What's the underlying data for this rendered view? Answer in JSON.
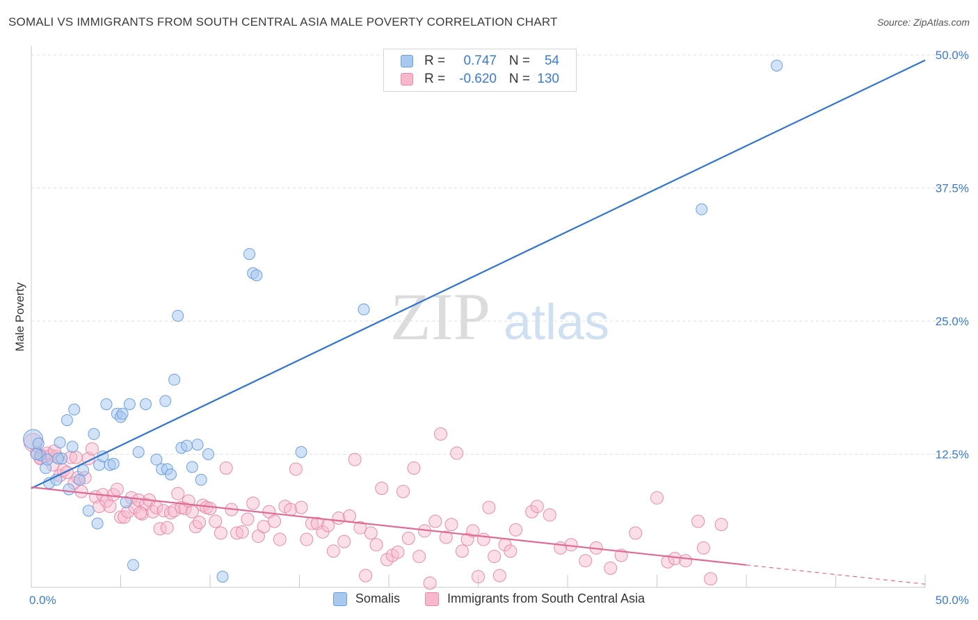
{
  "header": {
    "title": "SOMALI VS IMMIGRANTS FROM SOUTH CENTRAL ASIA MALE POVERTY CORRELATION CHART",
    "source": "Source: ZipAtlas.com"
  },
  "watermark": {
    "zip": "ZIP",
    "atlas": "atlas"
  },
  "legend": {
    "rows": [
      {
        "r_label": "R =",
        "r_value": "0.747",
        "n_label": "N =",
        "n_value": "54",
        "color": "#a8c8f0",
        "border": "#6a9fe0"
      },
      {
        "r_label": "R =",
        "r_value": "-0.620",
        "n_label": "N =",
        "n_value": "130",
        "color": "#f7b8cc",
        "border": "#e88aa8"
      }
    ],
    "bottom": [
      {
        "label": "Somalis",
        "color": "#a8c8f0",
        "border": "#6a9fe0"
      },
      {
        "label": "Immigrants from South Central Asia",
        "color": "#f7b8cc",
        "border": "#e88aa8"
      }
    ]
  },
  "chart_data": {
    "type": "scatter",
    "title": "SOMALI VS IMMIGRANTS FROM SOUTH CENTRAL ASIA MALE POVERTY CORRELATION CHART",
    "xlabel": "",
    "ylabel": "Male Poverty",
    "xlim": [
      0,
      50
    ],
    "ylim": [
      0,
      50
    ],
    "x_tick_labels": [
      "0.0%",
      "50.0%"
    ],
    "y_ticks": [
      12.5,
      25.0,
      37.5,
      50.0
    ],
    "y_tick_labels": [
      "12.5%",
      "25.0%",
      "37.5%",
      "50.0%"
    ],
    "grid": true,
    "series": [
      {
        "name": "Somalis",
        "color": "#6a9fe0",
        "fill": "#a8c8f0",
        "trend": {
          "x": [
            0,
            50
          ],
          "y": [
            9.3,
            49.5
          ],
          "color": "#2f74cf"
        },
        "points": [
          [
            0.1,
            13.9
          ],
          [
            0.4,
            13.5
          ],
          [
            0.5,
            12.4
          ],
          [
            0.8,
            11.2
          ],
          [
            0.9,
            12.0
          ],
          [
            1.0,
            9.8
          ],
          [
            1.4,
            10.1
          ],
          [
            1.6,
            13.6
          ],
          [
            1.7,
            12.1
          ],
          [
            2.0,
            15.7
          ],
          [
            2.1,
            9.2
          ],
          [
            2.3,
            13.2
          ],
          [
            2.4,
            16.7
          ],
          [
            2.7,
            10.1
          ],
          [
            2.9,
            11.0
          ],
          [
            3.2,
            7.2
          ],
          [
            3.5,
            14.4
          ],
          [
            3.7,
            6.0
          ],
          [
            3.8,
            11.5
          ],
          [
            4.0,
            12.3
          ],
          [
            4.2,
            17.2
          ],
          [
            4.4,
            11.5
          ],
          [
            4.6,
            11.6
          ],
          [
            4.8,
            16.3
          ],
          [
            5.0,
            16.0
          ],
          [
            5.1,
            16.3
          ],
          [
            5.3,
            8.0
          ],
          [
            5.5,
            17.2
          ],
          [
            5.7,
            2.1
          ],
          [
            6.0,
            12.7
          ],
          [
            6.4,
            17.2
          ],
          [
            7.0,
            12.0
          ],
          [
            7.3,
            11.1
          ],
          [
            7.5,
            17.5
          ],
          [
            7.6,
            11.1
          ],
          [
            7.8,
            10.6
          ],
          [
            8.0,
            19.5
          ],
          [
            8.2,
            25.5
          ],
          [
            8.4,
            13.1
          ],
          [
            8.7,
            13.3
          ],
          [
            9.0,
            11.3
          ],
          [
            9.3,
            13.4
          ],
          [
            9.5,
            10.1
          ],
          [
            9.9,
            12.5
          ],
          [
            10.7,
            1.0
          ],
          [
            12.2,
            31.3
          ],
          [
            12.4,
            29.5
          ],
          [
            12.6,
            29.3
          ],
          [
            15.1,
            12.7
          ],
          [
            18.6,
            26.1
          ],
          [
            37.5,
            35.5
          ],
          [
            41.7,
            49.0
          ],
          [
            0.3,
            12.5
          ],
          [
            1.5,
            12.1
          ]
        ]
      },
      {
        "name": "Immigrants from South Central Asia",
        "color": "#e88aa8",
        "fill": "#f7b8cc",
        "trend": {
          "x": [
            0,
            40
          ],
          "y": [
            9.4,
            2.1
          ],
          "dashed_to": [
            50,
            0.3
          ],
          "color": "#e06a93"
        },
        "points": [
          [
            0.1,
            13.6
          ],
          [
            0.3,
            12.6
          ],
          [
            0.5,
            12.2
          ],
          [
            0.7,
            12.3
          ],
          [
            0.9,
            12.6
          ],
          [
            1.1,
            12.4
          ],
          [
            1.2,
            11.5
          ],
          [
            1.4,
            12.3
          ],
          [
            1.6,
            10.5
          ],
          [
            1.8,
            11.0
          ],
          [
            2.0,
            10.8
          ],
          [
            2.2,
            12.2
          ],
          [
            2.4,
            9.8
          ],
          [
            2.6,
            10.3
          ],
          [
            2.8,
            9.0
          ],
          [
            3.0,
            10.3
          ],
          [
            3.2,
            12.1
          ],
          [
            3.4,
            13.0
          ],
          [
            3.6,
            8.5
          ],
          [
            3.8,
            7.6
          ],
          [
            4.0,
            8.7
          ],
          [
            4.2,
            8.1
          ],
          [
            4.4,
            7.6
          ],
          [
            4.6,
            8.7
          ],
          [
            4.8,
            9.2
          ],
          [
            5.0,
            6.6
          ],
          [
            5.2,
            6.6
          ],
          [
            5.4,
            7.1
          ],
          [
            5.6,
            8.4
          ],
          [
            5.8,
            7.5
          ],
          [
            6.0,
            8.2
          ],
          [
            6.2,
            6.9
          ],
          [
            6.4,
            7.8
          ],
          [
            6.6,
            8.2
          ],
          [
            6.8,
            7.1
          ],
          [
            7.0,
            7.5
          ],
          [
            7.2,
            5.5
          ],
          [
            7.4,
            7.2
          ],
          [
            7.6,
            5.6
          ],
          [
            7.8,
            7.0
          ],
          [
            8.0,
            7.2
          ],
          [
            8.2,
            8.8
          ],
          [
            8.4,
            7.5
          ],
          [
            8.6,
            7.4
          ],
          [
            8.8,
            8.1
          ],
          [
            9.0,
            7.1
          ],
          [
            9.2,
            5.7
          ],
          [
            9.4,
            6.1
          ],
          [
            9.6,
            7.7
          ],
          [
            9.8,
            7.5
          ],
          [
            10.0,
            7.4
          ],
          [
            10.3,
            6.2
          ],
          [
            10.6,
            5.1
          ],
          [
            10.9,
            11.2
          ],
          [
            11.2,
            7.3
          ],
          [
            11.5,
            5.1
          ],
          [
            11.8,
            5.2
          ],
          [
            12.1,
            6.4
          ],
          [
            12.4,
            7.9
          ],
          [
            12.7,
            4.8
          ],
          [
            13.0,
            5.7
          ],
          [
            13.3,
            7.1
          ],
          [
            13.6,
            6.2
          ],
          [
            13.9,
            4.5
          ],
          [
            14.2,
            7.6
          ],
          [
            14.5,
            7.3
          ],
          [
            14.8,
            11.1
          ],
          [
            15.1,
            7.5
          ],
          [
            15.4,
            4.5
          ],
          [
            15.7,
            6.0
          ],
          [
            16.0,
            6.0
          ],
          [
            16.3,
            5.2
          ],
          [
            16.6,
            5.8
          ],
          [
            16.9,
            3.4
          ],
          [
            17.2,
            6.5
          ],
          [
            17.5,
            4.3
          ],
          [
            17.8,
            6.7
          ],
          [
            18.1,
            12.0
          ],
          [
            18.4,
            5.6
          ],
          [
            18.7,
            1.1
          ],
          [
            19.0,
            5.1
          ],
          [
            19.3,
            4.0
          ],
          [
            19.6,
            9.3
          ],
          [
            19.9,
            2.6
          ],
          [
            20.2,
            3.0
          ],
          [
            20.5,
            3.3
          ],
          [
            20.8,
            9.0
          ],
          [
            21.1,
            4.6
          ],
          [
            21.4,
            11.2
          ],
          [
            21.7,
            2.9
          ],
          [
            22.0,
            5.3
          ],
          [
            22.3,
            0.4
          ],
          [
            22.6,
            6.2
          ],
          [
            22.9,
            14.4
          ],
          [
            23.2,
            4.7
          ],
          [
            23.5,
            5.9
          ],
          [
            23.8,
            12.6
          ],
          [
            24.1,
            3.4
          ],
          [
            24.4,
            4.5
          ],
          [
            24.7,
            5.3
          ],
          [
            25.0,
            1.0
          ],
          [
            25.3,
            4.5
          ],
          [
            25.6,
            7.5
          ],
          [
            25.9,
            2.9
          ],
          [
            26.2,
            1.1
          ],
          [
            26.5,
            4.0
          ],
          [
            26.8,
            3.4
          ],
          [
            27.1,
            5.4
          ],
          [
            28.0,
            7.1
          ],
          [
            28.3,
            7.6
          ],
          [
            29.0,
            6.8
          ],
          [
            29.6,
            3.7
          ],
          [
            30.2,
            4.0
          ],
          [
            31.0,
            2.5
          ],
          [
            31.6,
            3.7
          ],
          [
            32.4,
            1.8
          ],
          [
            33.0,
            3.0
          ],
          [
            33.8,
            5.1
          ],
          [
            35.0,
            8.4
          ],
          [
            35.6,
            2.4
          ],
          [
            36.0,
            2.7
          ],
          [
            36.6,
            2.5
          ],
          [
            37.3,
            6.2
          ],
          [
            37.6,
            3.7
          ],
          [
            38.6,
            5.9
          ],
          [
            38.0,
            0.8
          ],
          [
            0.5,
            12.1
          ],
          [
            1.3,
            12.8
          ],
          [
            2.5,
            12.2
          ],
          [
            6.1,
            7.0
          ]
        ]
      }
    ]
  }
}
